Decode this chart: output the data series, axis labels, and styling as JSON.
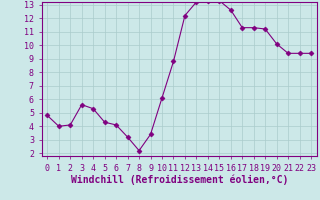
{
  "x": [
    0,
    1,
    2,
    3,
    4,
    5,
    6,
    7,
    8,
    9,
    10,
    11,
    12,
    13,
    14,
    15,
    16,
    17,
    18,
    19,
    20,
    21,
    22,
    23
  ],
  "y": [
    4.8,
    4.0,
    4.1,
    5.6,
    5.3,
    4.3,
    4.1,
    3.2,
    2.2,
    3.4,
    6.1,
    8.8,
    12.2,
    13.2,
    13.3,
    13.3,
    12.6,
    11.3,
    11.3,
    11.2,
    10.1,
    9.4,
    9.4,
    9.4
  ],
  "line_color": "#800080",
  "marker": "D",
  "marker_size": 2.5,
  "bg_color": "#cce8e8",
  "grid_color": "#aacccc",
  "axis_label_color": "#800080",
  "tick_color": "#800080",
  "xlabel": "Windchill (Refroidissement éolien,°C)",
  "ylim": [
    2,
    13
  ],
  "xlim": [
    -0.5,
    23.5
  ],
  "yticks": [
    2,
    3,
    4,
    5,
    6,
    7,
    8,
    9,
    10,
    11,
    12,
    13
  ],
  "xticks": [
    0,
    1,
    2,
    3,
    4,
    5,
    6,
    7,
    8,
    9,
    10,
    11,
    12,
    13,
    14,
    15,
    16,
    17,
    18,
    19,
    20,
    21,
    22,
    23
  ],
  "spine_color": "#800080",
  "font_size": 6.0,
  "label_font_size": 7.0
}
